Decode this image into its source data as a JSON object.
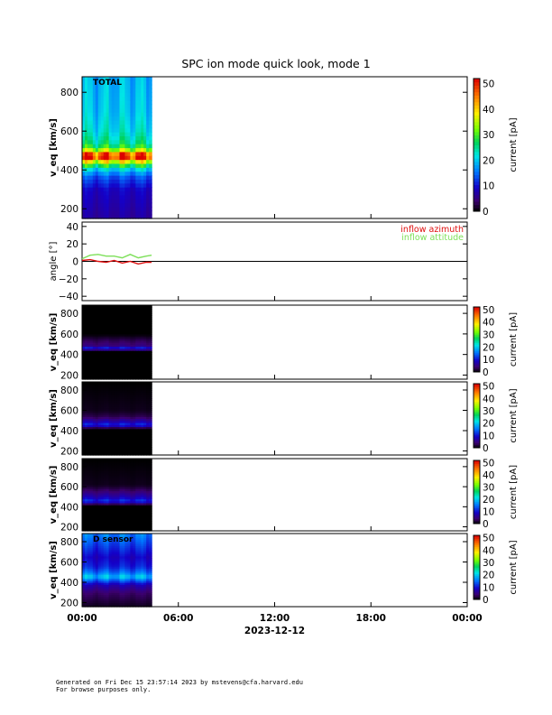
{
  "chart_data": {
    "type": "heatmap",
    "title": "SPC ion mode quick look, mode 1",
    "x_range": [
      "2023-12-12 00:00",
      "2023-12-13 00:00"
    ],
    "x_ticks": [
      "00:00",
      "06:00",
      "12:00",
      "18:00",
      "00:00"
    ],
    "x_date_label": "2023-12-12",
    "data_coverage": [
      "00:00",
      "04:20"
    ],
    "panels": [
      {
        "kind": "spectrogram",
        "label": "TOTAL",
        "ylabel": "v_eq [km/s]",
        "ylim": [
          150,
          880
        ],
        "yticks": [
          "200",
          "400",
          "600",
          "800"
        ],
        "colorbar_label": "current [pA]",
        "colorbar_ticks": [
          "0",
          "10",
          "20",
          "30",
          "40",
          "50"
        ],
        "clim": [
          0,
          52
        ],
        "profile": [
          {
            "v": 160,
            "c": 7
          },
          {
            "v": 300,
            "c": 9
          },
          {
            "v": 370,
            "c": 14
          },
          {
            "v": 410,
            "c": 22
          },
          {
            "v": 440,
            "c": 34
          },
          {
            "v": 460,
            "c": 49
          },
          {
            "v": 480,
            "c": 50
          },
          {
            "v": 500,
            "c": 36
          },
          {
            "v": 530,
            "c": 26
          },
          {
            "v": 600,
            "c": 22
          },
          {
            "v": 700,
            "c": 20
          },
          {
            "v": 880,
            "c": 19
          }
        ]
      },
      {
        "kind": "line",
        "ylabel": "angle [°]",
        "ylim": [
          -45,
          45
        ],
        "yticks": [
          "40",
          "20",
          "0",
          "−20",
          "−40"
        ],
        "series": [
          {
            "name": "inflow azimuth",
            "color": "#e01010",
            "x": [
              "00:00",
              "00:30",
              "01:00",
              "01:30",
              "02:00",
              "02:30",
              "03:00",
              "03:30",
              "04:00",
              "04:20"
            ],
            "y": [
              1,
              2,
              0,
              -1,
              1,
              -2,
              0,
              -3,
              -1,
              -1
            ]
          },
          {
            "name": "inflow attitude",
            "color": "#7ee05a",
            "x": [
              "00:00",
              "00:30",
              "01:00",
              "01:30",
              "02:00",
              "02:30",
              "03:00",
              "03:30",
              "04:00",
              "04:20"
            ],
            "y": [
              3,
              7,
              8,
              6,
              6,
              4,
              8,
              4,
              6,
              7
            ]
          }
        ]
      },
      {
        "kind": "spectrogram",
        "label": "",
        "ylabel": "v_eq [km/s]",
        "ylim": [
          160,
          880
        ],
        "yticks": [
          "200",
          "400",
          "600",
          "800"
        ],
        "colorbar_label": "current [pA]",
        "colorbar_ticks": [
          "0",
          "10",
          "20",
          "30",
          "40",
          "50"
        ],
        "clim": [
          0,
          52
        ],
        "profile": [
          {
            "v": 160,
            "c": 0
          },
          {
            "v": 430,
            "c": 0
          },
          {
            "v": 450,
            "c": 6
          },
          {
            "v": 470,
            "c": 10
          },
          {
            "v": 490,
            "c": 5
          },
          {
            "v": 540,
            "c": 3
          },
          {
            "v": 600,
            "c": 0
          },
          {
            "v": 880,
            "c": 0
          }
        ]
      },
      {
        "kind": "spectrogram",
        "label": "",
        "ylabel": "v_eq [km/s]",
        "ylim": [
          160,
          880
        ],
        "yticks": [
          "200",
          "400",
          "600",
          "800"
        ],
        "colorbar_label": "current [pA]",
        "colorbar_ticks": [
          "0",
          "10",
          "20",
          "30",
          "40",
          "50"
        ],
        "clim": [
          0,
          52
        ],
        "profile": [
          {
            "v": 160,
            "c": 0
          },
          {
            "v": 420,
            "c": 0
          },
          {
            "v": 440,
            "c": 6
          },
          {
            "v": 460,
            "c": 12
          },
          {
            "v": 490,
            "c": 8
          },
          {
            "v": 540,
            "c": 3
          },
          {
            "v": 600,
            "c": 1
          },
          {
            "v": 880,
            "c": 0
          }
        ]
      },
      {
        "kind": "spectrogram",
        "label": "",
        "ylabel": "v_eq [km/s]",
        "ylim": [
          160,
          880
        ],
        "yticks": [
          "200",
          "400",
          "600",
          "800"
        ],
        "colorbar_label": "current [pA]",
        "colorbar_ticks": [
          "0",
          "10",
          "20",
          "30",
          "40",
          "50"
        ],
        "clim": [
          0,
          52
        ],
        "profile": [
          {
            "v": 160,
            "c": 0
          },
          {
            "v": 420,
            "c": 0
          },
          {
            "v": 440,
            "c": 7
          },
          {
            "v": 460,
            "c": 12
          },
          {
            "v": 500,
            "c": 8
          },
          {
            "v": 560,
            "c": 4
          },
          {
            "v": 620,
            "c": 1
          },
          {
            "v": 880,
            "c": 0
          }
        ]
      },
      {
        "kind": "spectrogram",
        "label": "D sensor",
        "ylabel": "v_eq [km/s]",
        "ylim": [
          160,
          880
        ],
        "yticks": [
          "200",
          "400",
          "600",
          "800"
        ],
        "colorbar_label": "current [pA]",
        "colorbar_ticks": [
          "0",
          "10",
          "20",
          "30",
          "40",
          "50"
        ],
        "clim": [
          0,
          52
        ],
        "profile": [
          {
            "v": 160,
            "c": 1
          },
          {
            "v": 300,
            "c": 4
          },
          {
            "v": 380,
            "c": 8
          },
          {
            "v": 420,
            "c": 14
          },
          {
            "v": 460,
            "c": 20
          },
          {
            "v": 500,
            "c": 15
          },
          {
            "v": 560,
            "c": 11
          },
          {
            "v": 650,
            "c": 9
          },
          {
            "v": 750,
            "c": 12
          },
          {
            "v": 880,
            "c": 16
          }
        ]
      }
    ]
  },
  "footer": {
    "line1": "Generated on Fri Dec 15 23:57:14 2023 by mstevens@cfa.harvard.edu",
    "line2": "For browse purposes only."
  }
}
